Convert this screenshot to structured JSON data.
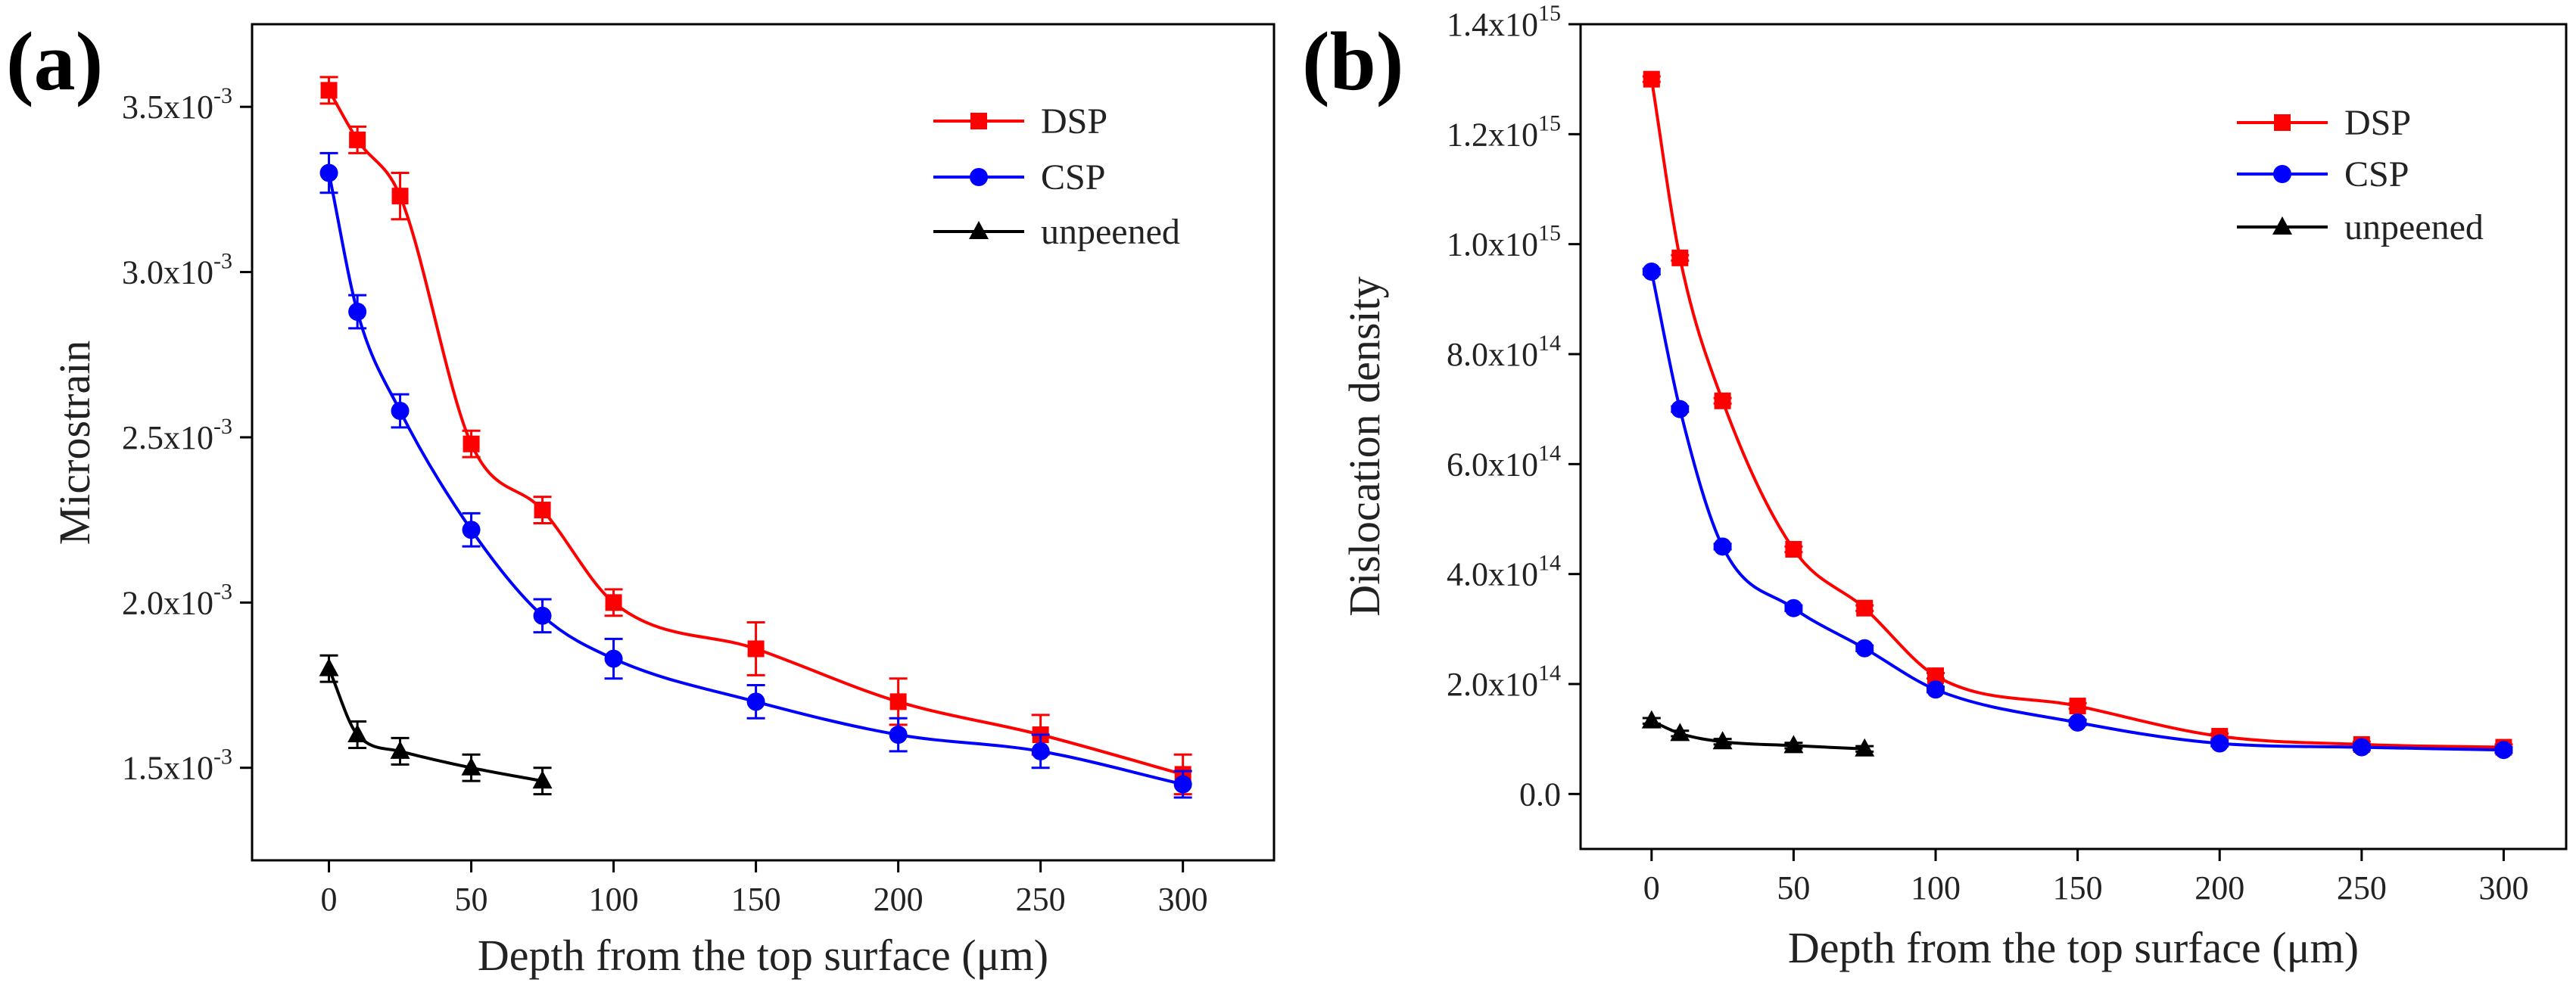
{
  "chart_data": [
    {
      "panel": "(a)",
      "type": "line",
      "title": "",
      "xlabel": "Depth from the top surface (μm)",
      "ylabel": "Microstrain",
      "xlim": [
        -27,
        332
      ],
      "ylim": [
        0.00122,
        0.00375
      ],
      "x_ticks": [
        0,
        50,
        100,
        150,
        200,
        250,
        300
      ],
      "x_tick_labels": [
        "0",
        "50",
        "100",
        "150",
        "200",
        "250",
        "300"
      ],
      "y_ticks": [
        0.0015,
        0.002,
        0.0025,
        0.003,
        0.0035
      ],
      "y_tick_labels": [
        {
          "mantissa": "1.5x10",
          "exp": "-3"
        },
        {
          "mantissa": "2.0x10",
          "exp": "-3"
        },
        {
          "mantissa": "2.5x10",
          "exp": "-3"
        },
        {
          "mantissa": "3.0x10",
          "exp": "-3"
        },
        {
          "mantissa": "3.5x10",
          "exp": "-3"
        }
      ],
      "legend_position": "top-right",
      "series": [
        {
          "name": "DSP",
          "color": "#ff0000",
          "marker": "square",
          "x": [
            0,
            10,
            25,
            50,
            75,
            100,
            150,
            200,
            250,
            300
          ],
          "values": [
            0.00355,
            0.0034,
            0.00323,
            0.00248,
            0.00228,
            0.002,
            0.00186,
            0.0017,
            0.0016,
            0.00148
          ],
          "errors": [
            4e-05,
            4e-05,
            7e-05,
            4e-05,
            4e-05,
            4e-05,
            8e-05,
            7e-05,
            6e-05,
            6e-05
          ]
        },
        {
          "name": "CSP",
          "color": "#0000ff",
          "marker": "circle",
          "x": [
            0,
            10,
            25,
            50,
            75,
            100,
            150,
            200,
            250,
            300
          ],
          "values": [
            0.0033,
            0.00288,
            0.00258,
            0.00222,
            0.00196,
            0.00183,
            0.0017,
            0.0016,
            0.00155,
            0.00145
          ],
          "errors": [
            6e-05,
            5e-05,
            5e-05,
            5e-05,
            5e-05,
            6e-05,
            5e-05,
            5e-05,
            5e-05,
            4e-05
          ]
        },
        {
          "name": "unpeened",
          "color": "#000000",
          "marker": "triangle",
          "x": [
            0,
            10,
            25,
            50,
            75
          ],
          "values": [
            0.0018,
            0.0016,
            0.00155,
            0.0015,
            0.00146
          ],
          "errors": [
            4e-05,
            4e-05,
            4e-05,
            4e-05,
            4e-05
          ]
        }
      ]
    },
    {
      "panel": "(b)",
      "type": "line",
      "title": "",
      "xlabel": "Depth from the top surface (μm)",
      "ylabel": "Dislocation density",
      "xlim": [
        -25,
        322
      ],
      "ylim": [
        -100000000000000.0,
        1400000000000000.0
      ],
      "x_ticks": [
        0,
        50,
        100,
        150,
        200,
        250,
        300
      ],
      "x_tick_labels": [
        "0",
        "50",
        "100",
        "150",
        "200",
        "250",
        "300"
      ],
      "y_ticks": [
        0,
        200000000000000.0,
        400000000000000.0,
        600000000000000.0,
        800000000000000.0,
        1000000000000000.0,
        1200000000000000.0,
        1400000000000000.0
      ],
      "y_tick_labels": [
        {
          "mantissa": "0.0",
          "exp": ""
        },
        {
          "mantissa": "2.0x10",
          "exp": "14"
        },
        {
          "mantissa": "4.0x10",
          "exp": "14"
        },
        {
          "mantissa": "6.0x10",
          "exp": "14"
        },
        {
          "mantissa": "8.0x10",
          "exp": "14"
        },
        {
          "mantissa": "1.0x10",
          "exp": "15"
        },
        {
          "mantissa": "1.2x10",
          "exp": "15"
        },
        {
          "mantissa": "1.4x10",
          "exp": "15"
        }
      ],
      "legend_position": "top-right",
      "series": [
        {
          "name": "DSP",
          "color": "#ff0000",
          "marker": "square",
          "x": [
            0,
            10,
            25,
            50,
            75,
            100,
            150,
            200,
            250,
            300
          ],
          "values": [
            1300000000000000.0,
            975000000000000.0,
            715000000000000.0,
            445000000000000.0,
            338000000000000.0,
            215000000000000.0,
            160000000000000.0,
            105000000000000.0,
            90000000000000.0,
            85000000000000.0
          ],
          "errors": [
            5000000000000.0,
            5000000000000.0,
            5000000000000.0,
            5000000000000.0,
            5000000000000.0,
            5000000000000.0,
            5000000000000.0,
            5000000000000.0,
            5000000000000.0,
            5000000000000.0
          ]
        },
        {
          "name": "CSP",
          "color": "#0000ff",
          "marker": "circle",
          "x": [
            0,
            10,
            25,
            50,
            75,
            100,
            150,
            200,
            250,
            300
          ],
          "values": [
            950000000000000.0,
            700000000000000.0,
            450000000000000.0,
            338000000000000.0,
            265000000000000.0,
            190000000000000.0,
            130000000000000.0,
            92000000000000.0,
            85000000000000.0,
            80000000000000.0
          ],
          "errors": [
            5000000000000.0,
            5000000000000.0,
            5000000000000.0,
            5000000000000.0,
            5000000000000.0,
            5000000000000.0,
            5000000000000.0,
            5000000000000.0,
            5000000000000.0,
            5000000000000.0
          ]
        },
        {
          "name": "unpeened",
          "color": "#000000",
          "marker": "triangle",
          "x": [
            0,
            10,
            25,
            50,
            75
          ],
          "values": [
            133000000000000.0,
            110000000000000.0,
            95000000000000.0,
            88000000000000.0,
            82000000000000.0
          ],
          "errors": [
            5000000000000.0,
            5000000000000.0,
            5000000000000.0,
            5000000000000.0,
            5000000000000.0
          ]
        }
      ]
    }
  ]
}
